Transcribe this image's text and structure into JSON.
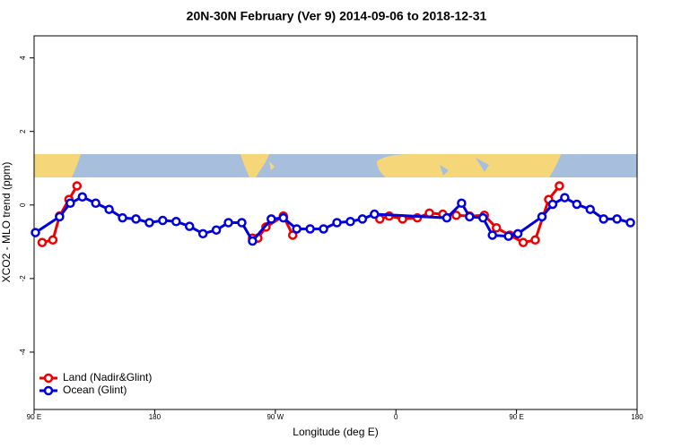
{
  "chart_data": {
    "type": "line",
    "title": "20N-30N February (Ver 9)   2014-09-06 to 2018-12-31",
    "x_label": "Longitude (deg E)",
    "y_label": "XCO2 - MLO trend (ppm)",
    "xlim": [
      90,
      540
    ],
    "xticks": [
      {
        "value": 90,
        "label": "90 E"
      },
      {
        "value": 180,
        "label": "180"
      },
      {
        "value": 270,
        "label": "90 W"
      },
      {
        "value": 360,
        "label": "0"
      },
      {
        "value": 450,
        "label": "90 E"
      },
      {
        "value": 540,
        "label": "180"
      }
    ],
    "ylim": [
      -5.56,
      4.6
    ],
    "yticks": [
      -4,
      -2,
      0,
      2,
      4
    ],
    "legend": "bottom-left",
    "series": [
      {
        "name": "Land (Nadir&Glint)",
        "color": "#ee0000",
        "x": [
          96,
          104,
          109,
          116,
          122,
          null,
          253,
          257,
          263,
          276,
          283,
          null,
          348,
          355,
          365,
          376,
          385,
          395,
          405,
          415,
          426,
          435,
          445,
          455,
          464,
          474,
          482
        ],
        "values": [
          -1.02,
          -0.95,
          -0.3,
          0.15,
          0.52,
          null,
          -0.9,
          -0.9,
          -0.6,
          -0.3,
          -0.82,
          null,
          -0.38,
          -0.3,
          -0.38,
          -0.35,
          -0.22,
          -0.25,
          -0.28,
          -0.3,
          -0.28,
          -0.62,
          -0.82,
          -1.02,
          -0.95,
          0.15,
          0.52
        ]
      },
      {
        "name": "Ocean (Glint)",
        "color": "#0000dd",
        "x": [
          91,
          109,
          117,
          126,
          136,
          146,
          156,
          166,
          176,
          186,
          196,
          206,
          216,
          226,
          235,
          245,
          253,
          267,
          276,
          286,
          296,
          306,
          316,
          326,
          335,
          344,
          398,
          409,
          415,
          425,
          432,
          444,
          451,
          469,
          477,
          486,
          495,
          505,
          515,
          525,
          535
        ],
        "values": [
          -0.75,
          -0.32,
          0.05,
          0.22,
          0.05,
          -0.12,
          -0.35,
          -0.38,
          -0.48,
          -0.42,
          -0.45,
          -0.58,
          -0.78,
          -0.68,
          -0.48,
          -0.48,
          -0.98,
          -0.38,
          -0.35,
          -0.65,
          -0.65,
          -0.65,
          -0.48,
          -0.45,
          -0.38,
          -0.25,
          -0.35,
          0.05,
          -0.32,
          -0.35,
          -0.82,
          -0.85,
          -0.78,
          -0.32,
          0.02,
          0.2,
          0.02,
          -0.12,
          -0.38,
          -0.38,
          -0.48
        ]
      }
    ]
  }
}
